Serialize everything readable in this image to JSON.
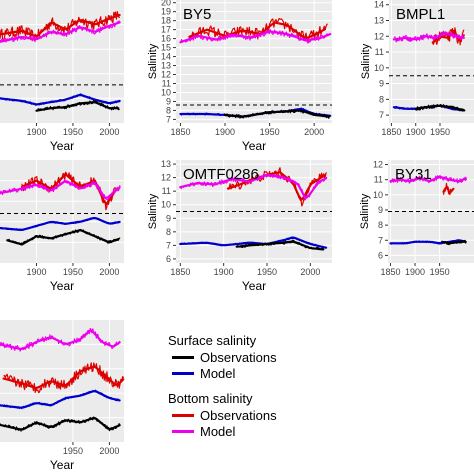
{
  "colors": {
    "panel_bg": "#ebebeb",
    "grid_major": "#ffffff",
    "grid_minor": "#f4f4f4",
    "dashed_line": "#000000",
    "surface_obs": "#000000",
    "surface_model": "#0000cc",
    "bottom_obs": "#dd0000",
    "bottom_model": "#ee00ee"
  },
  "legend": {
    "surface_title": "Surface salinity",
    "surface_obs_label": "Observations",
    "surface_model_label": "Model",
    "bottom_title": "Bottom salinity",
    "bottom_obs_label": "Observations",
    "bottom_model_label": "Model"
  },
  "chart_data": [
    {
      "type": "line",
      "panel": "row1-col1",
      "title": "",
      "xlabel": "Year",
      "ylabel": "",
      "xlim": [
        1850,
        2020
      ],
      "x_ticks": [
        1900,
        1950,
        2000
      ],
      "y_ticks": [],
      "dashed_y": 0.31,
      "series": [
        {
          "name": "Bottom salinity Observations",
          "x": [
            1850,
            1880,
            1900,
            1920,
            1940,
            1960,
            1980,
            2000,
            2015
          ],
          "values": [
            0.72,
            0.75,
            0.7,
            0.82,
            0.76,
            0.84,
            0.8,
            0.85,
            0.88
          ]
        },
        {
          "name": "Bottom salinity Model",
          "x": [
            1850,
            1880,
            1900,
            1920,
            1940,
            1960,
            1980,
            2000,
            2015
          ],
          "values": [
            0.66,
            0.7,
            0.68,
            0.74,
            0.72,
            0.78,
            0.74,
            0.79,
            0.82
          ]
        },
        {
          "name": "Surface salinity Model",
          "x": [
            1850,
            1880,
            1900,
            1920,
            1940,
            1960,
            1980,
            2000,
            2015
          ],
          "values": [
            0.2,
            0.18,
            0.15,
            0.17,
            0.19,
            0.23,
            0.19,
            0.16,
            0.18
          ]
        },
        {
          "name": "Surface salinity Observations",
          "x": [
            1900,
            1920,
            1940,
            1960,
            1980,
            2000,
            2015
          ],
          "values": [
            0.1,
            0.12,
            0.13,
            0.16,
            0.17,
            0.12,
            0.12
          ]
        }
      ]
    },
    {
      "type": "line",
      "panel": "BY5",
      "title": "BY5",
      "xlabel": "Year",
      "ylabel": "Salinity",
      "xlim": [
        1845,
        2020
      ],
      "ylim": [
        6.6,
        20.3
      ],
      "x_ticks": [
        1850,
        1900,
        1950,
        2000
      ],
      "y_ticks": [
        7,
        8,
        9,
        10,
        11,
        12,
        13,
        14,
        15,
        16,
        17,
        18,
        19,
        20
      ],
      "dashed_y": 8.6,
      "series": [
        {
          "name": "Bottom salinity Observations",
          "x": [
            1860,
            1880,
            1900,
            1920,
            1940,
            1955,
            1970,
            1990,
            2000,
            2015
          ],
          "values": [
            16.2,
            17.0,
            16.3,
            16.9,
            16.5,
            17.8,
            17.5,
            16.0,
            16.4,
            17.2
          ]
        },
        {
          "name": "Bottom salinity Model",
          "x": [
            1850,
            1870,
            1890,
            1910,
            1930,
            1950,
            1970,
            1990,
            2005,
            2018
          ],
          "values": [
            15.6,
            16.3,
            15.9,
            16.4,
            16.1,
            16.8,
            16.5,
            15.8,
            16.0,
            16.5
          ]
        },
        {
          "name": "Surface salinity Model",
          "x": [
            1850,
            1880,
            1900,
            1920,
            1950,
            1970,
            1985,
            2000,
            2018
          ],
          "values": [
            7.6,
            7.6,
            7.5,
            7.3,
            7.8,
            7.9,
            8.2,
            7.6,
            7.4
          ]
        },
        {
          "name": "Surface salinity Observations",
          "x": [
            1900,
            1920,
            1950,
            1970,
            1985,
            2000,
            2018
          ],
          "values": [
            7.5,
            7.3,
            7.8,
            7.9,
            8.0,
            7.5,
            7.3
          ]
        }
      ]
    },
    {
      "type": "line",
      "panel": "BMPL1",
      "title": "BMPL1",
      "xlabel": "",
      "ylabel": "Salinity",
      "xlim": [
        1845,
        2020
      ],
      "ylim": [
        6.5,
        14.3
      ],
      "x_ticks": [
        1850,
        1900,
        1950
      ],
      "y_ticks": [
        7,
        8,
        9,
        10,
        11,
        12,
        13,
        14
      ],
      "dashed_y": 9.5,
      "series": [
        {
          "name": "Bottom salinity Observations",
          "x": [
            1935,
            1950,
            1965,
            1980,
            1990,
            2000
          ],
          "values": [
            11.6,
            12.0,
            11.9,
            12.3,
            11.7,
            12.1
          ]
        },
        {
          "name": "Bottom salinity Model",
          "x": [
            1855,
            1880,
            1900,
            1920,
            1940,
            1960,
            1980,
            2000
          ],
          "values": [
            11.8,
            11.9,
            11.8,
            12.0,
            11.9,
            12.2,
            12.0,
            11.9
          ]
        },
        {
          "name": "Surface salinity Model",
          "x": [
            1855,
            1880,
            1900,
            1920,
            1950,
            1975,
            2000
          ],
          "values": [
            7.5,
            7.4,
            7.4,
            7.5,
            7.6,
            7.4,
            7.3
          ]
        },
        {
          "name": "Surface salinity Observations",
          "x": [
            1900,
            1920,
            1950,
            1975,
            2000
          ],
          "values": [
            7.4,
            7.5,
            7.6,
            7.5,
            7.3
          ]
        }
      ]
    },
    {
      "type": "line",
      "panel": "row2-col1",
      "title": "",
      "xlabel": "Year",
      "ylabel": "",
      "xlim": [
        1850,
        2020
      ],
      "x_ticks": [
        1900,
        1950,
        2000
      ],
      "y_ticks": [],
      "dashed_y": 0.48,
      "series": [
        {
          "name": "Bottom salinity Observations",
          "x": [
            1880,
            1900,
            1920,
            1940,
            1960,
            1980,
            1995,
            2010
          ],
          "values": [
            0.74,
            0.8,
            0.72,
            0.86,
            0.74,
            0.8,
            0.56,
            0.72
          ]
        },
        {
          "name": "Bottom salinity Model",
          "x": [
            1850,
            1880,
            1900,
            1920,
            1940,
            1960,
            1980,
            1995,
            2015
          ],
          "values": [
            0.68,
            0.72,
            0.76,
            0.7,
            0.8,
            0.72,
            0.78,
            0.62,
            0.74
          ]
        },
        {
          "name": "Surface salinity Model",
          "x": [
            1850,
            1880,
            1900,
            1920,
            1940,
            1960,
            1980,
            2000,
            2015
          ],
          "values": [
            0.34,
            0.32,
            0.36,
            0.4,
            0.38,
            0.4,
            0.44,
            0.38,
            0.4
          ]
        },
        {
          "name": "Surface salinity Observations",
          "x": [
            1860,
            1880,
            1900,
            1920,
            1940,
            1960,
            1980,
            2000,
            2015
          ],
          "values": [
            0.22,
            0.18,
            0.26,
            0.24,
            0.28,
            0.32,
            0.26,
            0.2,
            0.24
          ]
        }
      ]
    },
    {
      "type": "line",
      "panel": "OMTF0286",
      "title": "OMTF0286",
      "xlabel": "Year",
      "ylabel": "Salinity",
      "xlim": [
        1845,
        2025
      ],
      "ylim": [
        5.7,
        13.3
      ],
      "x_ticks": [
        1850,
        1900,
        1950,
        2000
      ],
      "y_ticks": [
        6,
        7,
        8,
        9,
        10,
        11,
        12,
        13
      ],
      "dashed_y": 9.5,
      "series": [
        {
          "name": "Bottom salinity Observations",
          "x": [
            1905,
            1915,
            1930,
            1950,
            1965,
            1980,
            1990,
            2000,
            2010,
            2020
          ],
          "values": [
            11.2,
            11.4,
            11.8,
            12.2,
            12.4,
            11.6,
            10.2,
            11.5,
            11.9,
            12.3
          ]
        },
        {
          "name": "Bottom salinity Model",
          "x": [
            1850,
            1870,
            1890,
            1910,
            1930,
            1950,
            1970,
            1985,
            1995,
            2010,
            2020
          ],
          "values": [
            11.3,
            11.6,
            11.5,
            11.9,
            11.7,
            12.2,
            12.0,
            11.6,
            10.4,
            11.7,
            12.0
          ]
        },
        {
          "name": "Surface salinity Model",
          "x": [
            1850,
            1880,
            1900,
            1930,
            1950,
            1970,
            1980,
            2000,
            2020
          ],
          "values": [
            7.1,
            7.2,
            7.0,
            7.2,
            7.1,
            7.4,
            7.6,
            7.1,
            6.8
          ]
        },
        {
          "name": "Surface salinity Observations",
          "x": [
            1915,
            1930,
            1950,
            1970,
            1980,
            2000,
            2015
          ],
          "values": [
            6.9,
            7.0,
            7.1,
            7.2,
            7.3,
            6.8,
            6.7
          ]
        }
      ]
    },
    {
      "type": "line",
      "panel": "BY31",
      "title": "BY31",
      "xlabel": "",
      "ylabel": "Salinity",
      "xlim": [
        1845,
        2020
      ],
      "ylim": [
        5.5,
        12.3
      ],
      "x_ticks": [
        1850,
        1900,
        1950
      ],
      "y_ticks": [
        6,
        7,
        8,
        9,
        10,
        11,
        12
      ],
      "dashed_y": 8.9,
      "series": [
        {
          "name": "Bottom salinity Observations",
          "x": [
            1958,
            1965,
            1970,
            1978
          ],
          "values": [
            10.2,
            10.6,
            10.1,
            10.4
          ]
        },
        {
          "name": "Bottom salinity Model",
          "x": [
            1850,
            1870,
            1890,
            1910,
            1930,
            1950,
            1970,
            1990,
            2005
          ],
          "values": [
            10.9,
            11.0,
            10.9,
            11.1,
            10.9,
            11.2,
            11.0,
            10.9,
            11.1
          ]
        },
        {
          "name": "Surface salinity Model",
          "x": [
            1850,
            1880,
            1900,
            1930,
            1950,
            1970,
            1990,
            2005
          ],
          "values": [
            6.8,
            6.8,
            6.9,
            6.9,
            6.8,
            6.9,
            7.0,
            6.9
          ]
        },
        {
          "name": "Surface salinity Observations",
          "x": [
            1955,
            1970,
            1990,
            2005
          ],
          "values": [
            6.9,
            6.8,
            6.9,
            6.9
          ]
        }
      ]
    },
    {
      "type": "line",
      "panel": "row3-col1",
      "title": "",
      "xlabel": "Year",
      "ylabel": "",
      "xlim": [
        1850,
        2020
      ],
      "x_ticks": [
        1950,
        2000
      ],
      "y_ticks": [],
      "series": [
        {
          "name": "Bottom salinity Model",
          "x": [
            1850,
            1880,
            1900,
            1920,
            1940,
            1960,
            1975,
            1990,
            2005,
            2015
          ],
          "values": [
            0.8,
            0.76,
            0.82,
            0.86,
            0.8,
            0.84,
            0.92,
            0.82,
            0.78,
            0.82
          ]
        },
        {
          "name": "Bottom salinity Observations",
          "x": [
            1855,
            1880,
            1900,
            1920,
            1940,
            1960,
            1980,
            1995,
            2010,
            2020
          ],
          "values": [
            0.52,
            0.48,
            0.44,
            0.5,
            0.46,
            0.58,
            0.62,
            0.54,
            0.46,
            0.52
          ]
        },
        {
          "name": "Surface salinity Model",
          "x": [
            1850,
            1880,
            1900,
            1920,
            1940,
            1960,
            1980,
            2000,
            2015
          ],
          "values": [
            0.3,
            0.28,
            0.32,
            0.3,
            0.36,
            0.38,
            0.42,
            0.36,
            0.34
          ]
        },
        {
          "name": "Surface salinity Observations",
          "x": [
            1850,
            1880,
            1900,
            1920,
            1940,
            1960,
            1980,
            2000,
            2015
          ],
          "values": [
            0.14,
            0.1,
            0.16,
            0.12,
            0.18,
            0.16,
            0.2,
            0.1,
            0.14
          ]
        }
      ]
    }
  ]
}
